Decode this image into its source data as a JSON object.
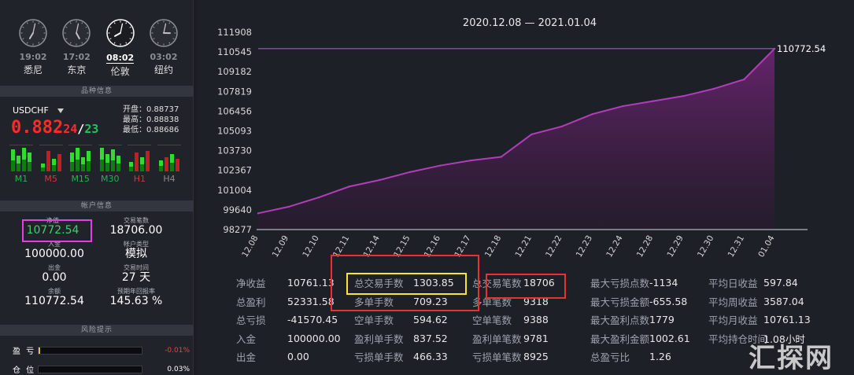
{
  "clocks": [
    {
      "time": "19:02",
      "city": "悉尼",
      "hour": 7,
      "minute": 2,
      "active": false
    },
    {
      "time": "17:02",
      "city": "东京",
      "hour": 5,
      "minute": 2,
      "active": false
    },
    {
      "time": "08:02",
      "city": "伦敦",
      "hour": 8,
      "minute": 2,
      "active": true
    },
    {
      "time": "03:02",
      "city": "纽约",
      "hour": 3,
      "minute": 2,
      "active": false
    }
  ],
  "sections": {
    "symbol_info": "品种信息",
    "account_info": "帐户信息",
    "risk_tips": "风险提示"
  },
  "symbol": {
    "name": "USDCHF",
    "price_main": "0.882",
    "price_sub": "24",
    "slash": "/",
    "price_sub2": "23",
    "open": "开盘：0.88737",
    "high": "最高：0.88838",
    "low": "最低：0.88686"
  },
  "timeframes": [
    {
      "label": "M1",
      "color": "g"
    },
    {
      "label": "M5",
      "color": "rd"
    },
    {
      "label": "M15",
      "color": "g"
    },
    {
      "label": "M30",
      "color": "g"
    },
    {
      "label": "H1",
      "color": "rd"
    },
    {
      "label": "H4",
      "color": "gr"
    }
  ],
  "account": {
    "equity_label": "净值",
    "equity": "10772.54",
    "trades_label": "交易笔数",
    "trades": "18706.00",
    "deposit_label": "入金",
    "deposit": "100000.00",
    "type_label": "帐户类型",
    "type": "模拟",
    "withdraw_label": "出金",
    "withdraw": "0.00",
    "days_label": "交易时间",
    "days": "27 天",
    "balance_label": "余额",
    "balance": "110772.54",
    "annual_label": "预期年回报率",
    "annual": "145.63 %"
  },
  "risk": [
    {
      "label": "盈 亏",
      "value": "-0.01%",
      "color": "#ff3b3b"
    },
    {
      "label": "仓 位",
      "value": "0.03%",
      "color": "#ffffff"
    }
  ],
  "chart_data": {
    "type": "area",
    "title": "2020.12.08 — 2021.01.04",
    "categories": [
      "12.08",
      "12.09",
      "12.10",
      "12.11",
      "12.14",
      "12.15",
      "12.16",
      "12.17",
      "12.18",
      "12.21",
      "12.22",
      "12.23",
      "12.24",
      "12.28",
      "12.29",
      "12.30",
      "12.31",
      "01.04"
    ],
    "x_positions": [
      0,
      1,
      2,
      3,
      4,
      5,
      6,
      7,
      8,
      9,
      10,
      11,
      12,
      13,
      14,
      15,
      16,
      17
    ],
    "values": [
      99400,
      99850,
      100500,
      101250,
      101700,
      102250,
      102700,
      103050,
      103300,
      104850,
      105400,
      106250,
      106800,
      107150,
      107500,
      108000,
      108650,
      110772.54
    ],
    "yticks": [
      "111908",
      "110545",
      "109182",
      "107819",
      "106456",
      "105093",
      "103730",
      "102367",
      "101004",
      "99640",
      "98277"
    ],
    "ylim": [
      98277,
      111908
    ],
    "last_label": "110772.54",
    "reference_line": 110772.54,
    "line_color": "#b23db8",
    "fill_color": "#5a1f60"
  },
  "stats": [
    [
      [
        "净收益",
        "10761.13"
      ],
      [
        "总盈利",
        "52331.58"
      ],
      [
        "总亏损",
        "-41570.45"
      ],
      [
        "入金",
        "100000.00"
      ],
      [
        "出金",
        "0.00"
      ]
    ],
    [
      [
        "总交易手数",
        "1303.85"
      ],
      [
        "多单手数",
        "709.23"
      ],
      [
        "空单手数",
        "594.62"
      ],
      [
        "盈利单手数",
        "837.52"
      ],
      [
        "亏损单手数",
        "466.33"
      ]
    ],
    [
      [
        "总交易笔数",
        "18706"
      ],
      [
        "多单笔数",
        "9318"
      ],
      [
        "空单笔数",
        "9388"
      ],
      [
        "盈利单笔数",
        "9781"
      ],
      [
        "亏损单笔数",
        "8925"
      ]
    ],
    [
      [
        "最大亏损点数",
        "-1134"
      ],
      [
        "最大亏损金额",
        "-655.58"
      ],
      [
        "最大盈利点数",
        "1779"
      ],
      [
        "最大盈利金额",
        "1002.61"
      ],
      [
        "总盈亏比",
        "1.26"
      ]
    ],
    [
      [
        "平均日收益",
        "597.84"
      ],
      [
        "平均周收益",
        "3587.04"
      ],
      [
        "平均月收益",
        "10761.13"
      ],
      [
        "平均持仓时间",
        "1.08小时"
      ],
      [
        "",
        ""
      ]
    ]
  ],
  "watermark": "汇探网"
}
